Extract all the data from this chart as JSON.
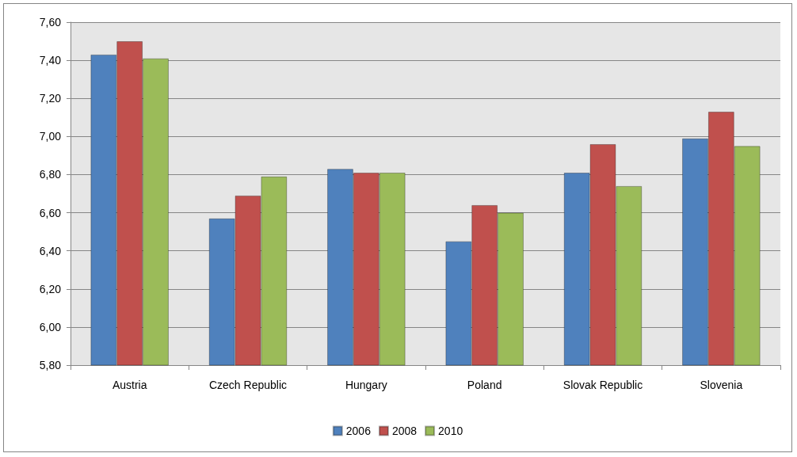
{
  "chart_data": {
    "type": "bar",
    "categories": [
      "Austria",
      "Czech Republic",
      "Hungary",
      "Poland",
      "Slovak Republic",
      "Slovenia"
    ],
    "series": [
      {
        "name": "2006",
        "color": "#4f81bd",
        "values": [
          7.43,
          6.57,
          6.83,
          6.45,
          6.81,
          6.99
        ]
      },
      {
        "name": "2008",
        "color": "#c0504d",
        "values": [
          7.5,
          6.69,
          6.81,
          6.64,
          6.96,
          7.13
        ]
      },
      {
        "name": "2010",
        "color": "#9bbb59",
        "values": [
          7.41,
          6.79,
          6.81,
          6.6,
          6.74,
          6.95
        ]
      }
    ],
    "ylim": [
      5.8,
      7.6
    ],
    "yticks": [
      {
        "value": 5.8,
        "label": "5,80"
      },
      {
        "value": 6.0,
        "label": "6,00"
      },
      {
        "value": 6.2,
        "label": "6,20"
      },
      {
        "value": 6.4,
        "label": "6,40"
      },
      {
        "value": 6.6,
        "label": "6,60"
      },
      {
        "value": 6.8,
        "label": "6,80"
      },
      {
        "value": 7.0,
        "label": "7,00"
      },
      {
        "value": 7.2,
        "label": "7,20"
      },
      {
        "value": 7.4,
        "label": "7,40"
      },
      {
        "value": 7.6,
        "label": "7,60"
      }
    ],
    "grid": "y",
    "legend": "bottom"
  }
}
